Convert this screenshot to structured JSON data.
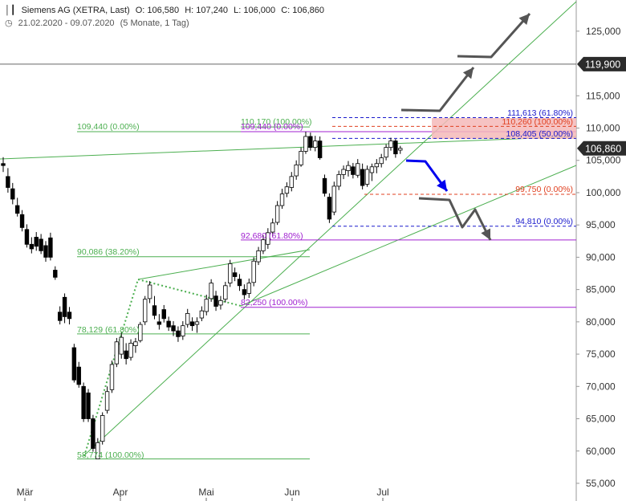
{
  "header": {
    "title": "Siemens AG (XETRA, Last)",
    "open": "O: 106,580",
    "high": "H: 107,240",
    "low": "L: 106,000",
    "close": "C: 106,860",
    "range": "21.02.2020 - 09.07.2020",
    "period": "(5 Monate, 1 Tag)"
  },
  "chart_data": {
    "type": "candlestick",
    "x_labels": [
      "Mär",
      "Apr",
      "Mai",
      "Jun",
      "Jul"
    ],
    "y_ticks": [
      "125,000",
      "115,000",
      "110,000",
      "105,000",
      "100,000",
      "95,000",
      "90,000",
      "85,000",
      "80,000",
      "75,000",
      "70,000",
      "65,000",
      "60,000",
      "55,000"
    ],
    "ylim": [
      54,
      128
    ],
    "last_price_label": "106,860",
    "resistance_label": "119,900",
    "candles": [
      [
        104.5,
        105.5,
        103.2,
        104.2
      ],
      [
        102.5,
        103.8,
        100.0,
        100.8
      ],
      [
        100.6,
        101.5,
        98.2,
        99.0
      ],
      [
        98.0,
        99.2,
        96.3,
        96.8
      ],
      [
        96.6,
        97.3,
        94.0,
        94.6
      ],
      [
        94.3,
        95.1,
        91.5,
        92.0
      ],
      [
        92.0,
        93.1,
        90.6,
        91.3
      ],
      [
        93.1,
        93.9,
        91.0,
        91.7
      ],
      [
        92.8,
        93.6,
        90.5,
        91.0
      ],
      [
        91.8,
        92.5,
        89.3,
        90.0
      ],
      [
        93.0,
        93.8,
        89.5,
        90.0
      ],
      [
        88.0,
        88.6,
        86.5,
        86.9
      ],
      [
        81.5,
        82.4,
        79.6,
        80.2
      ],
      [
        83.8,
        84.4,
        79.8,
        80.8
      ],
      [
        81.5,
        82.3,
        79.6,
        80.5
      ],
      [
        76.0,
        76.6,
        70.6,
        71.0
      ],
      [
        73.0,
        73.8,
        69.8,
        70.3
      ],
      [
        70.0,
        70.6,
        64.5,
        65.0
      ],
      [
        69.0,
        69.6,
        64.5,
        65.0
      ],
      [
        65.0,
        65.6,
        59.9,
        60.4
      ],
      [
        58.774,
        62.0,
        58.774,
        61.3
      ],
      [
        61.5,
        66.0,
        61.0,
        65.5
      ],
      [
        66.3,
        70.0,
        65.8,
        69.2
      ],
      [
        69.5,
        74.0,
        69.0,
        73.4
      ],
      [
        73.5,
        77.5,
        73.0,
        76.9
      ],
      [
        75.0,
        78.3,
        74.3,
        77.6
      ],
      [
        75.5,
        76.7,
        73.4,
        74.3
      ],
      [
        74.5,
        77.3,
        74.0,
        76.7
      ],
      [
        76.3,
        77.5,
        75.2,
        76.9
      ],
      [
        77.1,
        80.0,
        76.8,
        79.6
      ],
      [
        80.0,
        84.0,
        79.5,
        83.5
      ],
      [
        83.6,
        86.3,
        82.9,
        85.7
      ],
      [
        82.5,
        84.0,
        80.4,
        81.0
      ],
      [
        80.0,
        81.2,
        78.8,
        79.6
      ],
      [
        81.9,
        82.6,
        79.9,
        80.5
      ],
      [
        80.1,
        80.8,
        78.6,
        79.2
      ],
      [
        79.4,
        80.1,
        77.8,
        78.6
      ],
      [
        78.6,
        79.3,
        76.9,
        77.7
      ],
      [
        77.8,
        80.1,
        77.2,
        79.4
      ],
      [
        79.6,
        82.0,
        79.1,
        81.3
      ],
      [
        80.0,
        80.7,
        78.6,
        79.4
      ],
      [
        79.6,
        80.7,
        78.3,
        80.0
      ],
      [
        80.6,
        82.4,
        80.1,
        81.7
      ],
      [
        81.6,
        84.2,
        81.0,
        83.5
      ],
      [
        83.6,
        86.6,
        83.1,
        86.0
      ],
      [
        84.0,
        84.8,
        81.7,
        82.4
      ],
      [
        82.6,
        84.0,
        81.9,
        83.3
      ],
      [
        83.5,
        86.2,
        83.0,
        85.6
      ],
      [
        86.0,
        89.6,
        85.4,
        89.0
      ],
      [
        87.6,
        88.4,
        86.3,
        87.0
      ],
      [
        86.6,
        87.4,
        84.8,
        85.6
      ],
      [
        85.0,
        85.8,
        83.5,
        84.2
      ],
      [
        84.4,
        86.7,
        83.7,
        86.0
      ],
      [
        86.1,
        90.0,
        85.5,
        89.4
      ],
      [
        89.3,
        91.6,
        88.8,
        91.0
      ],
      [
        91.0,
        93.4,
        90.5,
        92.7
      ],
      [
        92.0,
        94.5,
        91.3,
        93.8
      ],
      [
        93.9,
        96.0,
        93.2,
        95.3
      ],
      [
        95.4,
        98.7,
        95.0,
        98.0
      ],
      [
        98.0,
        100.6,
        97.5,
        99.8
      ],
      [
        99.9,
        101.6,
        99.3,
        100.9
      ],
      [
        100.8,
        103.2,
        100.2,
        102.5
      ],
      [
        102.6,
        105.0,
        102.0,
        104.3
      ],
      [
        104.3,
        107.0,
        104.0,
        106.4
      ],
      [
        106.4,
        109.44,
        106.0,
        108.7
      ],
      [
        108.7,
        109.3,
        106.5,
        107.0
      ],
      [
        107.0,
        108.8,
        106.4,
        108.0
      ],
      [
        108.0,
        108.7,
        105.1,
        105.4
      ],
      [
        102.2,
        102.8,
        99.4,
        99.9
      ],
      [
        99.3,
        99.9,
        95.3,
        95.9
      ],
      [
        97.0,
        101.7,
        96.5,
        101.0
      ],
      [
        101.0,
        103.4,
        100.4,
        102.8
      ],
      [
        102.8,
        104.2,
        102.1,
        103.6
      ],
      [
        103.4,
        104.9,
        102.5,
        104.2
      ],
      [
        104.0,
        104.6,
        102.2,
        102.8
      ],
      [
        102.7,
        105.2,
        102.3,
        104.5
      ],
      [
        103.6,
        104.5,
        100.5,
        101.1
      ],
      [
        101.3,
        104.2,
        100.9,
        103.6
      ],
      [
        103.1,
        104.5,
        101.8,
        104.0
      ],
      [
        104.0,
        105.2,
        103.0,
        104.5
      ],
      [
        104.5,
        106.0,
        103.9,
        105.4
      ],
      [
        105.5,
        107.5,
        105.0,
        107.0
      ],
      [
        107.0,
        108.5,
        106.5,
        108.0
      ],
      [
        108.0,
        108.3,
        105.4,
        106.0
      ],
      [
        106.58,
        107.24,
        106.0,
        106.86
      ]
    ],
    "fib_levels": [
      {
        "label": "109,440 (0.00%)",
        "color": "#4caf50"
      },
      {
        "label": "90,086 (38.20%)",
        "color": "#4caf50"
      },
      {
        "label": "78,129 (61.80%)",
        "color": "#4caf50"
      },
      {
        "label": "58,774 (100.00%)",
        "color": "#4caf50"
      },
      {
        "label": "110,170 (100.00%)",
        "color": "#4caf50"
      },
      {
        "label": "109,440 (0.00%)",
        "color": "#a020d0"
      },
      {
        "label": "92,680 (61.80%)",
        "color": "#a020d0"
      },
      {
        "label": "82,250 (100.00%)",
        "color": "#a020d0"
      },
      {
        "label": "111,613 (61.80%)",
        "color": "#1a1acc"
      },
      {
        "label": "110,260 (100.00%)",
        "color": "#e04020"
      },
      {
        "label": "108,405 (50.00%)",
        "color": "#1a1acc"
      },
      {
        "label": "99,750 (0.00%)",
        "color": "#e04020"
      },
      {
        "label": "94,810 (0.00%)",
        "color": "#1a1acc"
      }
    ],
    "colors": {
      "up": "#ffffff",
      "down": "#000000",
      "scenario": "#555555",
      "bearish": "#0000ee",
      "zone": "#f4b8b8"
    }
  }
}
